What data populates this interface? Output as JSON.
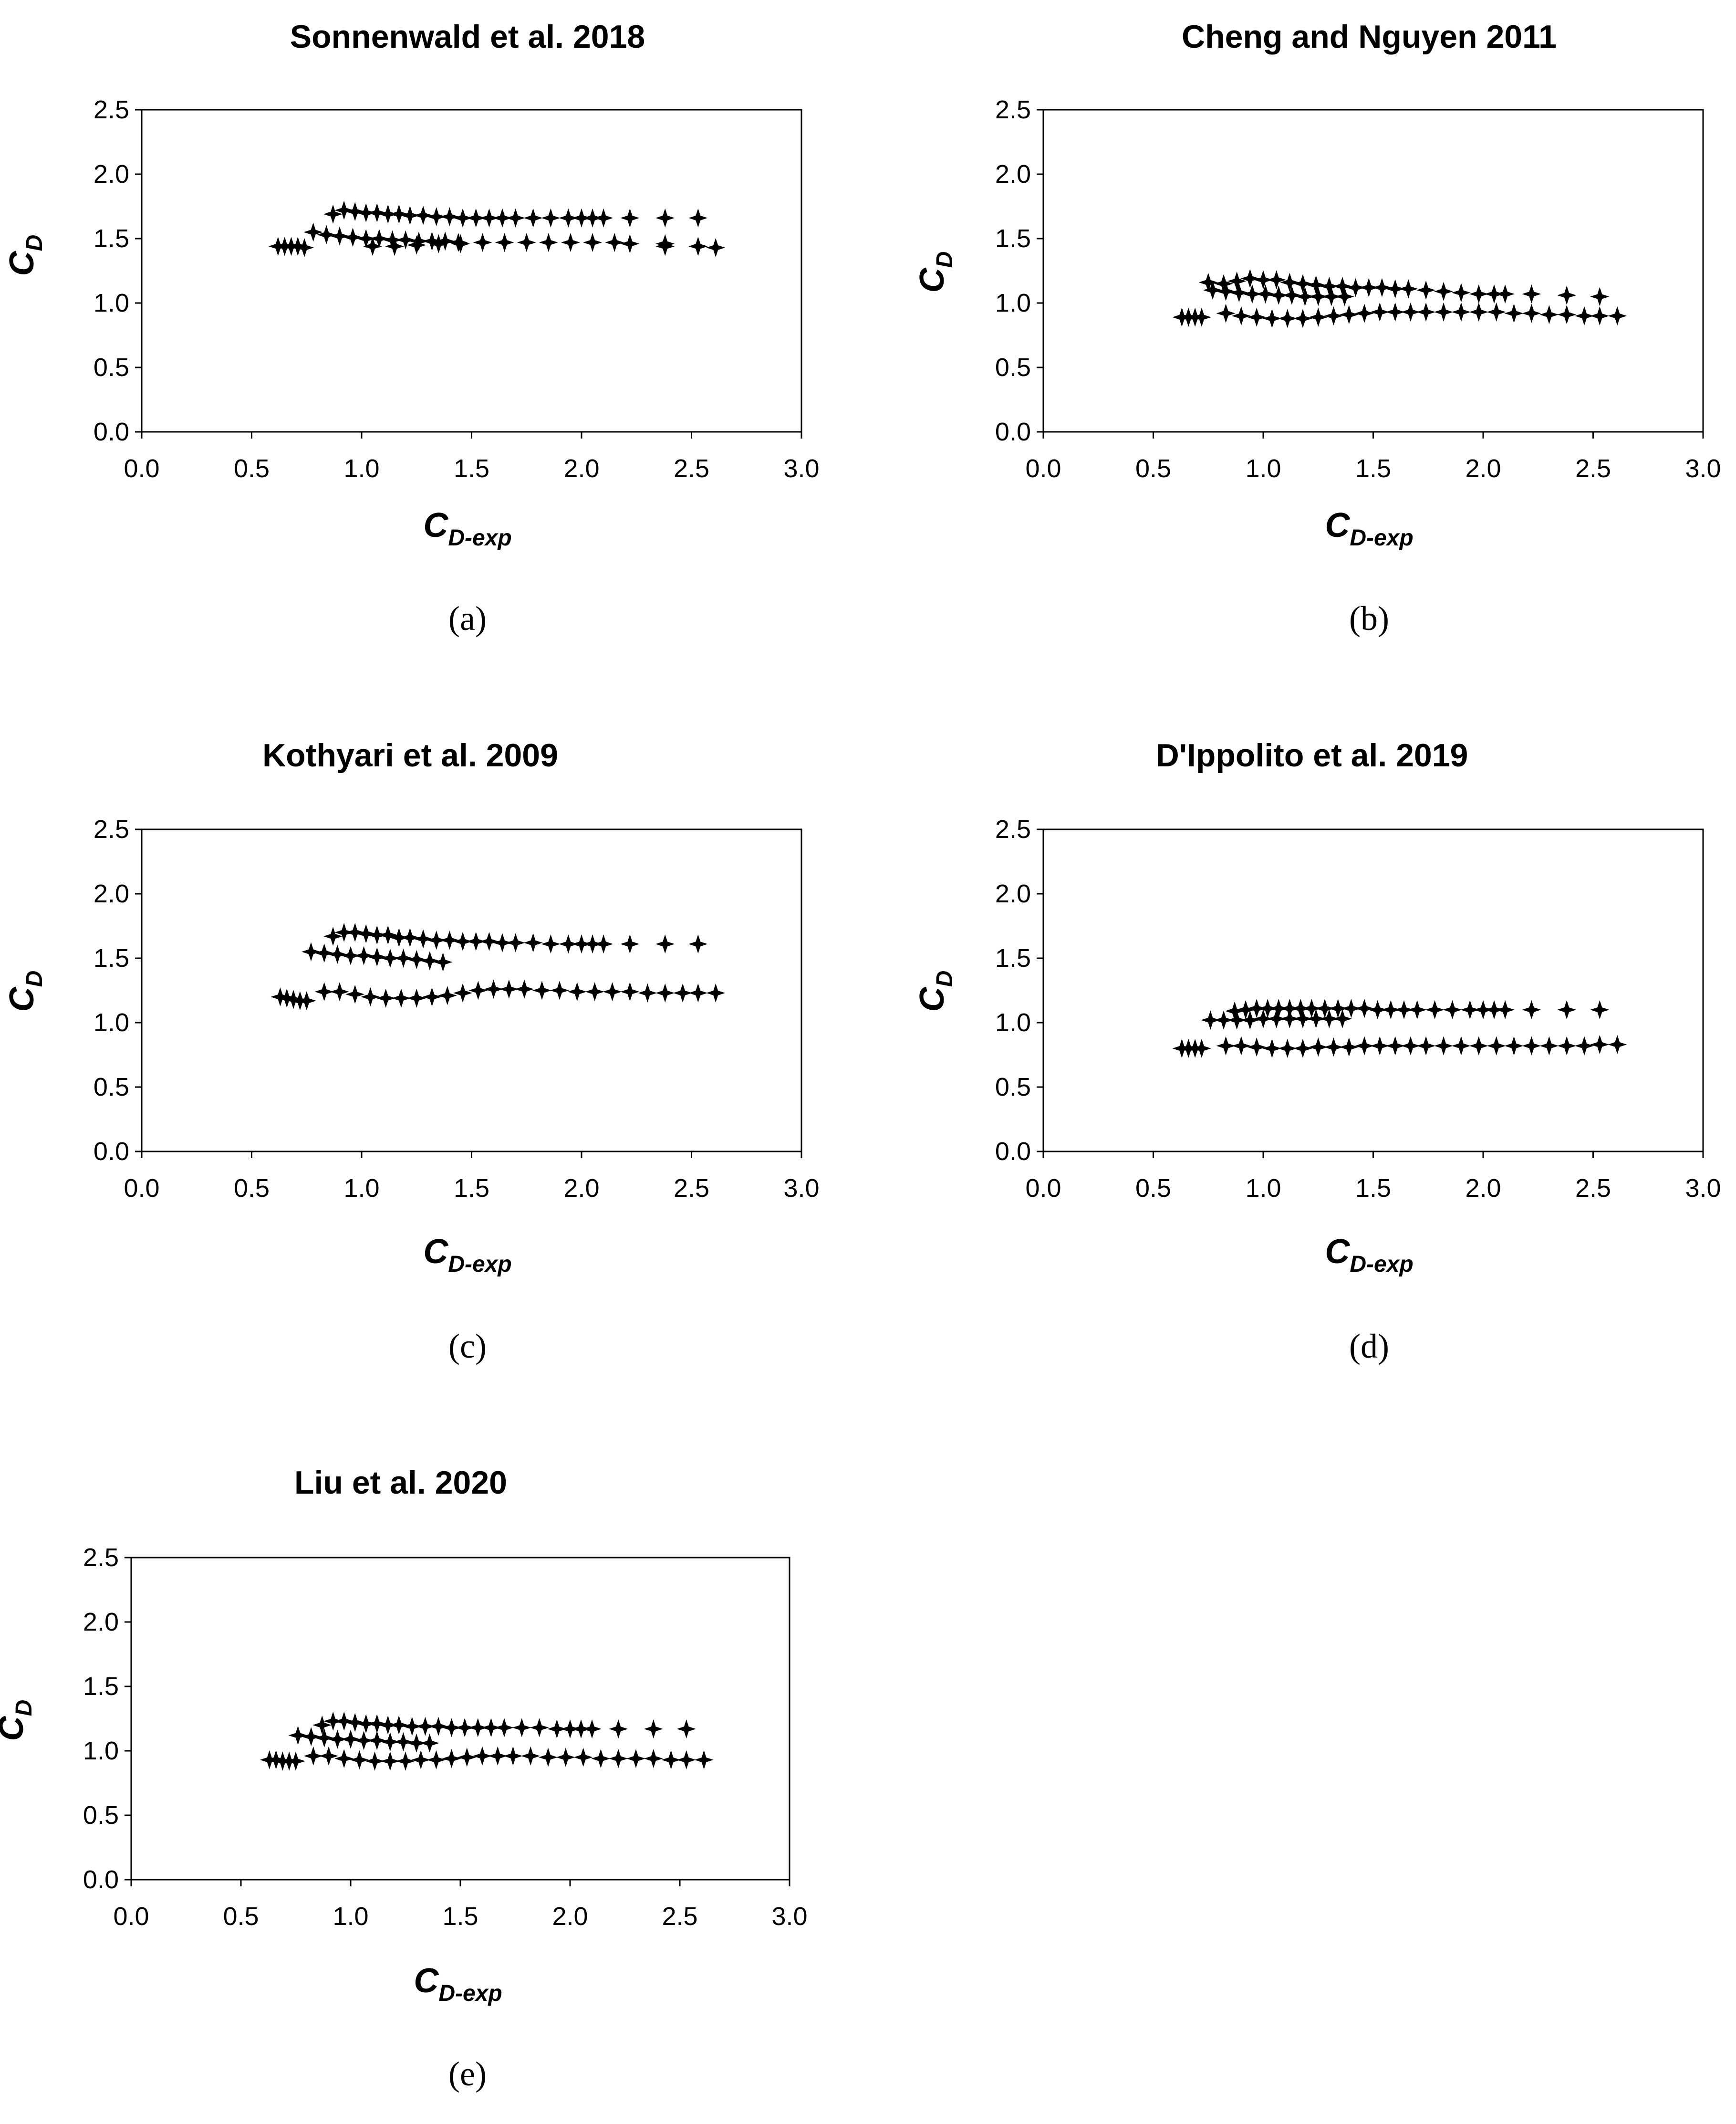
{
  "panel_labels": [
    "(a)",
    "(b)",
    "(c)",
    "(d)",
    "(e)"
  ],
  "marker_color": "#000000",
  "marker_shape": "four-point-star",
  "chart_data": [
    {
      "type": "scatter",
      "title": "Sonnenwald et al. 2018",
      "xlabel": "C",
      "xlabel_sub": "D-exp",
      "ylabel": "C",
      "ylabel_sub": "D",
      "xlim": [
        0,
        3
      ],
      "ylim": [
        0,
        2.5
      ],
      "xticks": [
        "0.0",
        "0.5",
        "1.0",
        "1.5",
        "2.0",
        "2.5",
        "3.0"
      ],
      "yticks": [
        "0.0",
        "0.5",
        "1.0",
        "1.5",
        "2.0",
        "2.5"
      ],
      "grid": false,
      "series": [
        {
          "x": [
            0.65,
            0.68,
            0.71,
            0.74,
            1.05,
            1.15,
            1.25,
            1.35,
            1.45,
            1.55,
            1.65,
            1.75,
            1.85,
            1.95,
            2.05,
            2.15,
            2.22,
            2.38,
            2.53
          ],
          "y": [
            1.44,
            1.44,
            1.44,
            1.43,
            1.44,
            1.44,
            1.45,
            1.46,
            1.46,
            1.47,
            1.47,
            1.47,
            1.47,
            1.47,
            1.47,
            1.47,
            1.46,
            1.44,
            1.44
          ]
        },
        {
          "x": [
            0.62,
            2.38,
            2.53,
            2.61
          ],
          "y": [
            1.44,
            1.46,
            1.44,
            1.43
          ]
        },
        {
          "x": [
            0.78,
            0.84,
            0.9,
            0.96,
            1.02,
            1.08,
            1.14,
            1.2,
            1.26,
            1.32,
            1.38,
            1.44
          ],
          "y": [
            1.55,
            1.53,
            1.52,
            1.51,
            1.5,
            1.5,
            1.49,
            1.49,
            1.48,
            1.48,
            1.48,
            1.47
          ]
        },
        {
          "x": [
            0.87,
            0.92,
            0.97,
            1.02,
            1.07,
            1.12,
            1.17,
            1.22,
            1.28,
            1.34,
            1.4,
            1.46,
            1.52,
            1.58,
            1.64,
            1.7,
            1.78,
            1.86,
            1.94,
            2.0,
            2.05,
            2.1,
            2.22,
            2.38,
            2.53
          ],
          "y": [
            1.69,
            1.72,
            1.71,
            1.7,
            1.7,
            1.69,
            1.69,
            1.68,
            1.68,
            1.67,
            1.67,
            1.66,
            1.66,
            1.66,
            1.66,
            1.66,
            1.66,
            1.66,
            1.66,
            1.66,
            1.66,
            1.66,
            1.66,
            1.66,
            1.66
          ]
        }
      ]
    },
    {
      "type": "scatter",
      "title": "Cheng and Nguyen 2011",
      "xlabel": "C",
      "xlabel_sub": "D-exp",
      "ylabel": "C",
      "ylabel_sub": "D",
      "xlim": [
        0,
        3
      ],
      "ylim": [
        0,
        2.5
      ],
      "xticks": [
        "0.0",
        "0.5",
        "1.0",
        "1.5",
        "2.0",
        "2.5",
        "3.0"
      ],
      "yticks": [
        "0.0",
        "0.5",
        "1.0",
        "1.5",
        "2.0",
        "2.5"
      ],
      "grid": false,
      "series": [
        {
          "x": [
            0.63,
            0.66,
            0.69,
            0.72,
            0.83,
            0.9,
            0.97,
            1.04,
            1.11,
            1.18,
            1.25,
            1.32,
            1.39,
            1.46,
            1.53,
            1.6,
            1.67,
            1.74,
            1.82,
            1.9,
            1.98,
            2.06,
            2.14,
            2.22,
            2.3,
            2.38,
            2.46,
            2.53,
            2.61
          ],
          "y": [
            0.89,
            0.89,
            0.89,
            0.89,
            0.92,
            0.9,
            0.89,
            0.88,
            0.88,
            0.88,
            0.89,
            0.9,
            0.91,
            0.92,
            0.93,
            0.93,
            0.93,
            0.93,
            0.93,
            0.93,
            0.93,
            0.93,
            0.92,
            0.92,
            0.91,
            0.91,
            0.9,
            0.9,
            0.9
          ]
        },
        {
          "x": [
            0.77,
            0.83,
            0.89,
            0.95,
            1.01,
            1.07,
            1.13,
            1.19,
            1.25,
            1.31,
            1.37
          ],
          "y": [
            1.1,
            1.09,
            1.08,
            1.07,
            1.07,
            1.06,
            1.06,
            1.05,
            1.05,
            1.05,
            1.05
          ]
        },
        {
          "x": [
            0.75,
            0.82,
            0.88,
            0.94,
            1.0,
            1.06,
            1.12,
            1.18,
            1.24,
            1.3,
            1.36,
            1.42,
            1.48,
            1.54,
            1.6,
            1.66,
            1.74,
            1.82,
            1.9,
            1.98,
            2.05,
            2.1,
            2.22,
            2.38,
            2.53
          ],
          "y": [
            1.16,
            1.15,
            1.17,
            1.19,
            1.18,
            1.18,
            1.16,
            1.15,
            1.14,
            1.13,
            1.13,
            1.12,
            1.12,
            1.12,
            1.11,
            1.11,
            1.1,
            1.09,
            1.08,
            1.07,
            1.07,
            1.07,
            1.07,
            1.06,
            1.05
          ]
        }
      ]
    },
    {
      "type": "scatter",
      "title": "Kothyari et al. 2009",
      "xlabel": "C",
      "xlabel_sub": "D-exp",
      "ylabel": "C",
      "ylabel_sub": "D",
      "xlim": [
        0,
        3
      ],
      "ylim": [
        0,
        2.5
      ],
      "xticks": [
        "0.0",
        "0.5",
        "1.0",
        "1.5",
        "2.0",
        "2.5",
        "3.0"
      ],
      "yticks": [
        "0.0",
        "0.5",
        "1.0",
        "1.5",
        "2.0",
        "2.5"
      ],
      "grid": false,
      "series": [
        {
          "x": [
            0.63,
            0.66,
            0.69,
            0.72,
            0.75,
            0.83,
            0.9,
            0.97,
            1.04,
            1.11,
            1.18,
            1.25,
            1.32,
            1.39,
            1.46,
            1.53,
            1.6,
            1.67,
            1.74,
            1.82,
            1.9,
            1.98,
            2.06,
            2.14,
            2.22,
            2.3,
            2.38,
            2.46,
            2.53,
            2.61
          ],
          "y": [
            1.2,
            1.19,
            1.18,
            1.17,
            1.17,
            1.24,
            1.24,
            1.22,
            1.2,
            1.19,
            1.19,
            1.19,
            1.2,
            1.21,
            1.23,
            1.25,
            1.26,
            1.26,
            1.26,
            1.25,
            1.25,
            1.24,
            1.24,
            1.24,
            1.24,
            1.23,
            1.23,
            1.23,
            1.23,
            1.23
          ]
        },
        {
          "x": [
            0.77,
            0.83,
            0.89,
            0.95,
            1.01,
            1.07,
            1.13,
            1.19,
            1.25,
            1.31,
            1.37
          ],
          "y": [
            1.55,
            1.54,
            1.53,
            1.52,
            1.52,
            1.51,
            1.5,
            1.5,
            1.49,
            1.48,
            1.47
          ]
        },
        {
          "x": [
            0.87,
            0.92,
            0.97,
            1.02,
            1.07,
            1.12,
            1.17,
            1.22,
            1.28,
            1.34,
            1.4,
            1.46,
            1.52,
            1.58,
            1.64,
            1.7,
            1.78,
            1.86,
            1.94,
            2.0,
            2.05,
            2.1,
            2.22,
            2.38,
            2.53
          ],
          "y": [
            1.67,
            1.7,
            1.7,
            1.69,
            1.68,
            1.68,
            1.66,
            1.66,
            1.65,
            1.64,
            1.64,
            1.63,
            1.63,
            1.63,
            1.62,
            1.62,
            1.62,
            1.61,
            1.61,
            1.61,
            1.61,
            1.61,
            1.61,
            1.61,
            1.61
          ]
        }
      ]
    },
    {
      "type": "scatter",
      "title": "D'Ippolito et al. 2019",
      "xlabel": "C",
      "xlabel_sub": "D-exp",
      "ylabel": "C",
      "ylabel_sub": "D",
      "xlim": [
        0,
        3
      ],
      "ylim": [
        0,
        2.5
      ],
      "xticks": [
        "0.0",
        "0.5",
        "1.0",
        "1.5",
        "2.0",
        "2.5",
        "3.0"
      ],
      "yticks": [
        "0.0",
        "0.5",
        "1.0",
        "1.5",
        "2.0",
        "2.5"
      ],
      "grid": false,
      "series": [
        {
          "x": [
            0.63,
            0.66,
            0.69,
            0.72,
            0.83,
            0.9,
            0.97,
            1.04,
            1.11,
            1.18,
            1.25,
            1.32,
            1.39,
            1.46,
            1.53,
            1.6,
            1.67,
            1.74,
            1.82,
            1.9,
            1.98,
            2.06,
            2.14,
            2.22,
            2.3,
            2.38,
            2.46,
            2.53,
            2.61
          ],
          "y": [
            0.8,
            0.8,
            0.8,
            0.8,
            0.82,
            0.82,
            0.81,
            0.8,
            0.8,
            0.8,
            0.81,
            0.81,
            0.81,
            0.82,
            0.82,
            0.82,
            0.82,
            0.82,
            0.82,
            0.82,
            0.82,
            0.82,
            0.82,
            0.82,
            0.82,
            0.82,
            0.82,
            0.83,
            0.83
          ]
        },
        {
          "x": [
            0.76,
            0.82,
            0.88,
            0.94,
            1.0,
            1.06,
            1.12,
            1.18,
            1.24,
            1.3,
            1.36
          ],
          "y": [
            1.02,
            1.02,
            1.02,
            1.02,
            1.03,
            1.03,
            1.03,
            1.03,
            1.03,
            1.03,
            1.03
          ]
        },
        {
          "x": [
            0.87,
            0.92,
            0.97,
            1.02,
            1.07,
            1.12,
            1.17,
            1.22,
            1.28,
            1.34,
            1.4,
            1.46,
            1.52,
            1.58,
            1.64,
            1.7,
            1.78,
            1.86,
            1.94,
            2.0,
            2.05,
            2.1,
            2.22,
            2.38,
            2.53
          ],
          "y": [
            1.09,
            1.1,
            1.11,
            1.11,
            1.11,
            1.11,
            1.11,
            1.11,
            1.11,
            1.11,
            1.11,
            1.11,
            1.1,
            1.1,
            1.1,
            1.1,
            1.1,
            1.1,
            1.1,
            1.1,
            1.1,
            1.1,
            1.1,
            1.1,
            1.1
          ]
        }
      ]
    },
    {
      "type": "scatter",
      "title": "Liu et al. 2020",
      "xlabel": "C",
      "xlabel_sub": "D-exp",
      "ylabel": "C",
      "ylabel_sub": "D",
      "xlim": [
        0,
        3
      ],
      "ylim": [
        0,
        2.5
      ],
      "xticks": [
        "0.0",
        "0.5",
        "1.0",
        "1.5",
        "2.0",
        "2.5",
        "3.0"
      ],
      "yticks": [
        "0.0",
        "0.5",
        "1.0",
        "1.5",
        "2.0",
        "2.5"
      ],
      "grid": false,
      "series": [
        {
          "x": [
            0.63,
            0.66,
            0.69,
            0.72,
            0.75,
            0.83,
            0.9,
            0.97,
            1.04,
            1.11,
            1.18,
            1.25,
            1.32,
            1.39,
            1.46,
            1.53,
            1.6,
            1.67,
            1.74,
            1.82,
            1.9,
            1.98,
            2.06,
            2.14,
            2.22,
            2.3,
            2.38,
            2.46,
            2.53,
            2.61
          ],
          "y": [
            0.93,
            0.93,
            0.92,
            0.92,
            0.92,
            0.96,
            0.96,
            0.94,
            0.93,
            0.92,
            0.92,
            0.92,
            0.93,
            0.93,
            0.94,
            0.95,
            0.96,
            0.96,
            0.96,
            0.96,
            0.95,
            0.95,
            0.95,
            0.94,
            0.94,
            0.94,
            0.94,
            0.93,
            0.93,
            0.93
          ]
        },
        {
          "x": [
            0.76,
            0.82,
            0.88,
            0.94,
            1.0,
            1.06,
            1.12,
            1.18,
            1.24,
            1.3,
            1.36
          ],
          "y": [
            1.12,
            1.11,
            1.1,
            1.09,
            1.09,
            1.08,
            1.08,
            1.07,
            1.07,
            1.06,
            1.06
          ]
        },
        {
          "x": [
            0.87,
            0.92,
            0.97,
            1.02,
            1.07,
            1.12,
            1.17,
            1.22,
            1.28,
            1.34,
            1.4,
            1.46,
            1.52,
            1.58,
            1.64,
            1.7,
            1.78,
            1.86,
            1.94,
            2.0,
            2.05,
            2.1,
            2.22,
            2.38,
            2.53
          ],
          "y": [
            1.2,
            1.23,
            1.23,
            1.22,
            1.21,
            1.21,
            1.2,
            1.2,
            1.19,
            1.19,
            1.19,
            1.18,
            1.18,
            1.18,
            1.18,
            1.18,
            1.18,
            1.18,
            1.17,
            1.17,
            1.17,
            1.17,
            1.17,
            1.17,
            1.17
          ]
        }
      ]
    }
  ]
}
